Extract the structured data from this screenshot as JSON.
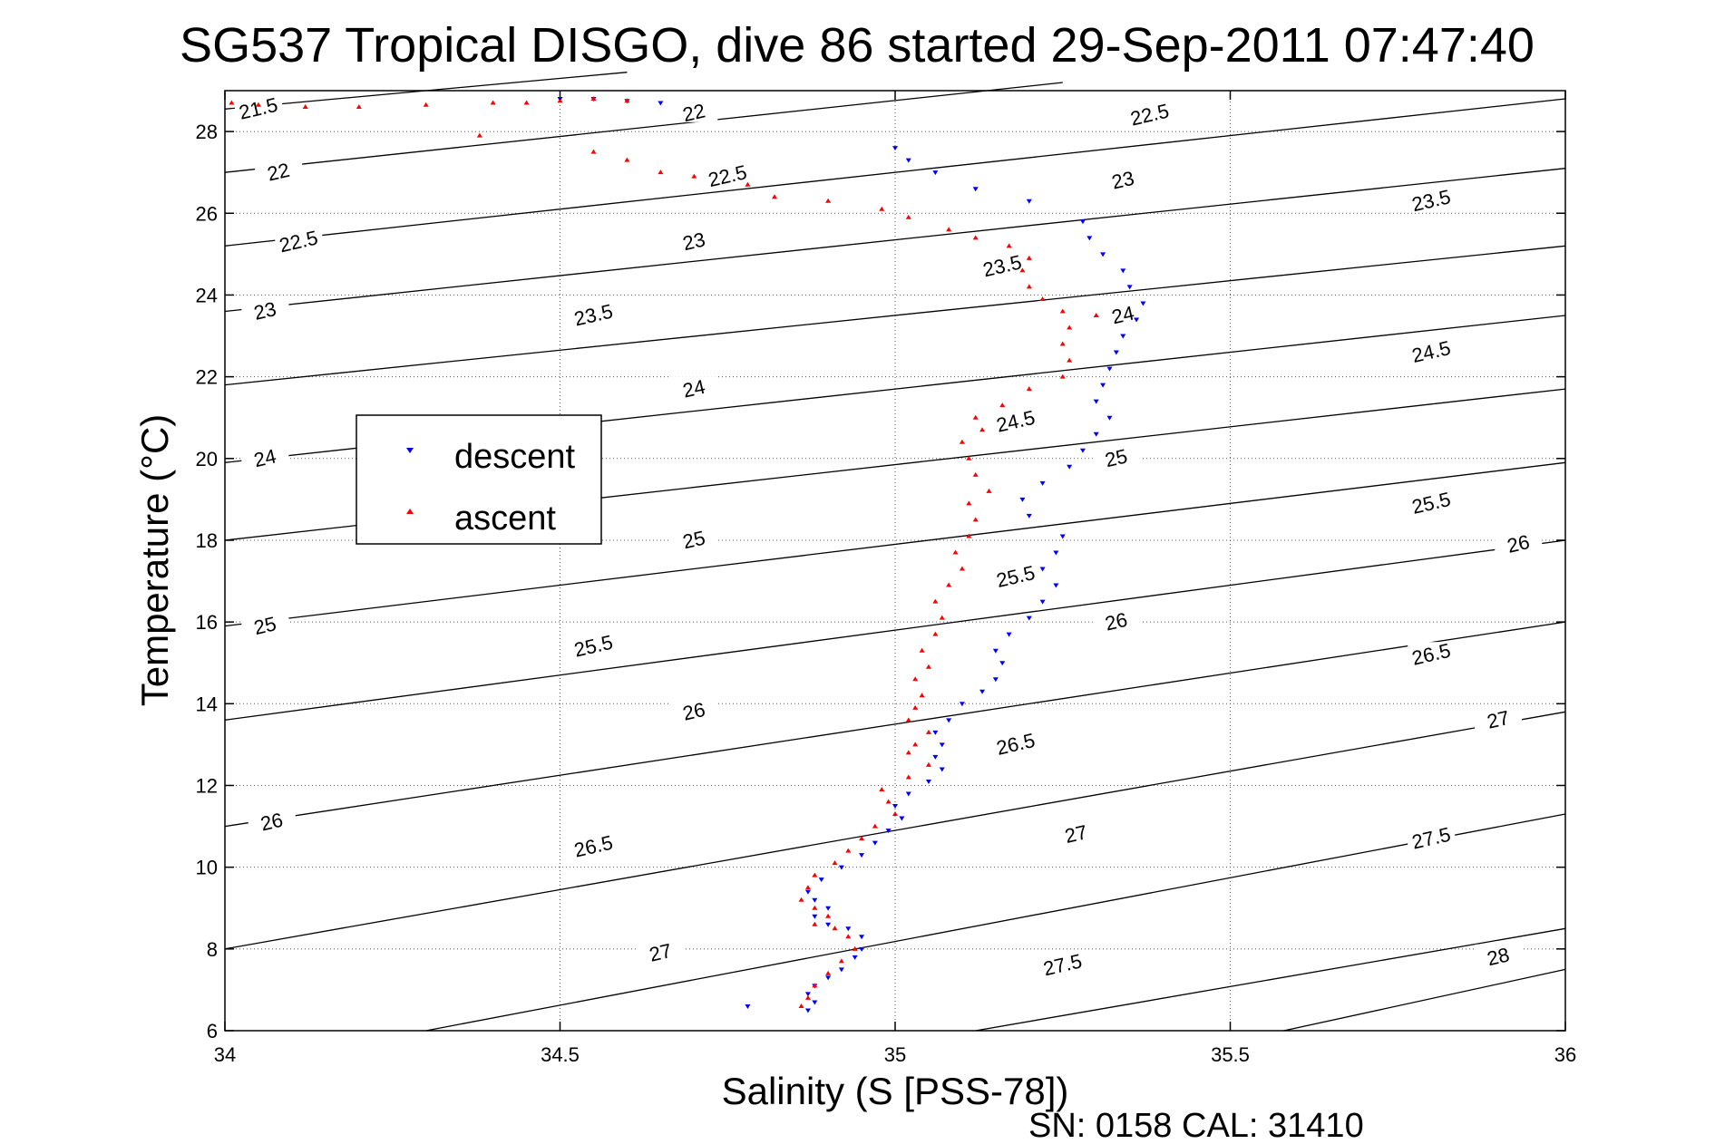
{
  "chart_data": {
    "type": "scatter",
    "title": "SG537 Tropical DISGO, dive 86 started 29-Sep-2011 07:47:40",
    "xlabel": "Salinity (S [PSS-78])",
    "ylabel": "Temperature (°C)",
    "xlim": [
      34,
      36
    ],
    "ylim": [
      6,
      29
    ],
    "xticks": [
      "34",
      "34.5",
      "35",
      "35.5",
      "36"
    ],
    "yticks": [
      "6",
      "8",
      "10",
      "12",
      "14",
      "16",
      "18",
      "20",
      "22",
      "24",
      "26",
      "28"
    ],
    "grid": "dotted",
    "legend": {
      "position": "middle-left",
      "entries": [
        "descent",
        "ascent"
      ]
    },
    "colors": {
      "descent": "#0000ff",
      "ascent": "#ff0000",
      "contour": "#000000"
    },
    "series": [
      {
        "name": "descent",
        "marker": "triangle-down",
        "points": [
          [
            34.5,
            28.8
          ],
          [
            34.55,
            28.8
          ],
          [
            34.6,
            28.75
          ],
          [
            34.65,
            28.7
          ],
          [
            34.78,
            6.6
          ],
          [
            34.87,
            6.5
          ],
          [
            34.88,
            6.7
          ],
          [
            34.87,
            6.9
          ],
          [
            34.88,
            7.1
          ],
          [
            34.9,
            7.3
          ],
          [
            34.92,
            7.5
          ],
          [
            34.94,
            7.8
          ],
          [
            34.95,
            8.0
          ],
          [
            34.95,
            8.3
          ],
          [
            34.93,
            8.5
          ],
          [
            34.9,
            8.6
          ],
          [
            34.88,
            8.8
          ],
          [
            34.9,
            9.0
          ],
          [
            34.88,
            9.2
          ],
          [
            34.87,
            9.4
          ],
          [
            34.89,
            9.7
          ],
          [
            34.92,
            10.0
          ],
          [
            34.95,
            10.3
          ],
          [
            34.97,
            10.6
          ],
          [
            34.99,
            10.9
          ],
          [
            35.01,
            11.2
          ],
          [
            35.0,
            11.5
          ],
          [
            35.02,
            11.8
          ],
          [
            35.05,
            12.1
          ],
          [
            35.07,
            12.4
          ],
          [
            35.06,
            12.7
          ],
          [
            35.07,
            13.0
          ],
          [
            35.06,
            13.3
          ],
          [
            35.08,
            13.6
          ],
          [
            35.1,
            14.0
          ],
          [
            35.13,
            14.3
          ],
          [
            35.15,
            14.6
          ],
          [
            35.16,
            15.0
          ],
          [
            35.15,
            15.3
          ],
          [
            35.17,
            15.7
          ],
          [
            35.2,
            16.1
          ],
          [
            35.22,
            16.5
          ],
          [
            35.24,
            16.9
          ],
          [
            35.22,
            17.3
          ],
          [
            35.24,
            17.7
          ],
          [
            35.25,
            18.1
          ],
          [
            35.2,
            18.6
          ],
          [
            35.19,
            19.0
          ],
          [
            35.22,
            19.4
          ],
          [
            35.26,
            19.8
          ],
          [
            35.28,
            20.2
          ],
          [
            35.3,
            20.6
          ],
          [
            35.32,
            21.0
          ],
          [
            35.3,
            21.4
          ],
          [
            35.31,
            21.8
          ],
          [
            35.32,
            22.2
          ],
          [
            35.33,
            22.6
          ],
          [
            35.34,
            23.0
          ],
          [
            35.36,
            23.4
          ],
          [
            35.37,
            23.8
          ],
          [
            35.35,
            24.2
          ],
          [
            35.34,
            24.6
          ],
          [
            35.31,
            25.0
          ],
          [
            35.29,
            25.4
          ],
          [
            35.28,
            25.8
          ],
          [
            35.2,
            26.3
          ],
          [
            35.12,
            26.6
          ],
          [
            35.06,
            27.0
          ],
          [
            35.02,
            27.3
          ],
          [
            35.0,
            27.6
          ]
        ]
      },
      {
        "name": "ascent",
        "marker": "triangle-up",
        "points": [
          [
            34.01,
            28.7
          ],
          [
            34.05,
            28.65
          ],
          [
            34.12,
            28.6
          ],
          [
            34.2,
            28.6
          ],
          [
            34.3,
            28.65
          ],
          [
            34.4,
            28.7
          ],
          [
            34.45,
            28.7
          ],
          [
            34.5,
            28.75
          ],
          [
            34.55,
            28.8
          ],
          [
            34.6,
            28.75
          ],
          [
            34.38,
            27.9
          ],
          [
            34.55,
            27.5
          ],
          [
            34.6,
            27.3
          ],
          [
            34.65,
            27.0
          ],
          [
            34.7,
            26.9
          ],
          [
            34.78,
            26.7
          ],
          [
            34.82,
            26.4
          ],
          [
            34.9,
            26.3
          ],
          [
            34.98,
            26.1
          ],
          [
            35.02,
            25.9
          ],
          [
            35.08,
            25.6
          ],
          [
            35.12,
            25.4
          ],
          [
            35.17,
            25.2
          ],
          [
            35.2,
            24.9
          ],
          [
            35.19,
            24.6
          ],
          [
            35.2,
            24.2
          ],
          [
            35.22,
            23.9
          ],
          [
            35.25,
            23.6
          ],
          [
            35.3,
            23.5
          ],
          [
            35.26,
            23.2
          ],
          [
            35.25,
            22.8
          ],
          [
            35.26,
            22.4
          ],
          [
            35.25,
            22.0
          ],
          [
            35.2,
            21.7
          ],
          [
            35.16,
            21.3
          ],
          [
            35.12,
            21.0
          ],
          [
            35.13,
            20.7
          ],
          [
            35.1,
            20.4
          ],
          [
            35.11,
            20.0
          ],
          [
            35.12,
            19.6
          ],
          [
            35.14,
            19.2
          ],
          [
            35.11,
            18.9
          ],
          [
            35.12,
            18.5
          ],
          [
            35.11,
            18.1
          ],
          [
            35.09,
            17.7
          ],
          [
            35.1,
            17.3
          ],
          [
            35.08,
            16.9
          ],
          [
            35.06,
            16.5
          ],
          [
            35.07,
            16.1
          ],
          [
            35.06,
            15.7
          ],
          [
            35.04,
            15.3
          ],
          [
            35.05,
            14.9
          ],
          [
            35.03,
            14.6
          ],
          [
            35.04,
            14.2
          ],
          [
            35.03,
            13.9
          ],
          [
            35.02,
            13.6
          ],
          [
            35.05,
            13.3
          ],
          [
            35.03,
            13.0
          ],
          [
            35.02,
            12.8
          ],
          [
            35.05,
            12.5
          ],
          [
            35.02,
            12.2
          ],
          [
            34.98,
            11.9
          ],
          [
            34.99,
            11.6
          ],
          [
            35.0,
            11.3
          ],
          [
            34.97,
            11.0
          ],
          [
            34.95,
            10.7
          ],
          [
            34.93,
            10.4
          ],
          [
            34.91,
            10.1
          ],
          [
            34.88,
            9.8
          ],
          [
            34.87,
            9.5
          ],
          [
            34.86,
            9.2
          ],
          [
            34.88,
            9.0
          ],
          [
            34.9,
            8.8
          ],
          [
            34.88,
            8.6
          ],
          [
            34.91,
            8.5
          ],
          [
            34.93,
            8.3
          ],
          [
            34.94,
            8.0
          ],
          [
            34.92,
            7.7
          ],
          [
            34.9,
            7.4
          ],
          [
            34.88,
            7.1
          ],
          [
            34.87,
            6.8
          ],
          [
            34.86,
            6.6
          ]
        ]
      }
    ],
    "density_contours": {
      "levels": [
        "21.5",
        "22",
        "22.5",
        "23",
        "23.5",
        "24",
        "24.5",
        "25",
        "25.5",
        "26",
        "26.5",
        "27",
        "27.5",
        "28"
      ],
      "lines": [
        {
          "label": "21.5",
          "points": [
            [
              34.0,
              28.55
            ],
            [
              34.6,
              29.45
            ]
          ]
        },
        {
          "label": "22",
          "points": [
            [
              34.0,
              27.0
            ],
            [
              35.25,
              29.2
            ]
          ]
        },
        {
          "label": "22.5",
          "points": [
            [
              34.0,
              25.2
            ],
            [
              36.0,
              28.8
            ]
          ]
        },
        {
          "label": "23",
          "points": [
            [
              34.0,
              23.6
            ],
            [
              36.0,
              27.1
            ]
          ]
        },
        {
          "label": "23.5",
          "points": [
            [
              34.0,
              21.8
            ],
            [
              36.0,
              25.2
            ]
          ]
        },
        {
          "label": "24",
          "points": [
            [
              34.0,
              19.9
            ],
            [
              36.0,
              23.5
            ]
          ]
        },
        {
          "label": "24.5",
          "points": [
            [
              34.0,
              18.0
            ],
            [
              36.0,
              21.7
            ]
          ]
        },
        {
          "label": "25",
          "points": [
            [
              34.0,
              15.9
            ],
            [
              36.0,
              19.9
            ]
          ]
        },
        {
          "label": "25.5",
          "points": [
            [
              34.0,
              13.6
            ],
            [
              36.0,
              18.0
            ]
          ]
        },
        {
          "label": "26",
          "points": [
            [
              34.0,
              11.0
            ],
            [
              36.0,
              16.0
            ]
          ]
        },
        {
          "label": "26.5",
          "points": [
            [
              34.0,
              8.0
            ],
            [
              36.0,
              13.8
            ]
          ]
        },
        {
          "label": "27",
          "points": [
            [
              34.3,
              6.0
            ],
            [
              36.0,
              11.3
            ]
          ]
        },
        {
          "label": "27.5",
          "points": [
            [
              35.12,
              6.0
            ],
            [
              36.0,
              8.5
            ]
          ]
        },
        {
          "label": "28",
          "points": [
            [
              35.58,
              6.0
            ],
            [
              36.0,
              7.5
            ]
          ]
        }
      ],
      "labels": [
        {
          "text": "21.5",
          "at": [
            34.05,
            28.55
          ]
        },
        {
          "text": "22",
          "at": [
            34.7,
            28.45
          ]
        },
        {
          "text": "22.5",
          "at": [
            35.38,
            28.4
          ]
        },
        {
          "text": "22",
          "at": [
            34.08,
            27.0
          ]
        },
        {
          "text": "22.5",
          "at": [
            34.75,
            26.9
          ]
        },
        {
          "text": "23",
          "at": [
            35.34,
            26.8
          ]
        },
        {
          "text": "22.5",
          "at": [
            34.11,
            25.3
          ]
        },
        {
          "text": "23",
          "at": [
            34.7,
            25.3
          ]
        },
        {
          "text": "23.5",
          "at": [
            35.8,
            26.3
          ]
        },
        {
          "text": "23",
          "at": [
            34.06,
            23.6
          ]
        },
        {
          "text": "23.5",
          "at": [
            34.55,
            23.5
          ]
        },
        {
          "text": "23.5",
          "at": [
            35.16,
            24.7
          ]
        },
        {
          "text": "24",
          "at": [
            35.34,
            23.5
          ]
        },
        {
          "text": "24",
          "at": [
            34.7,
            21.7
          ]
        },
        {
          "text": "24.5",
          "at": [
            35.8,
            22.6
          ]
        },
        {
          "text": "24",
          "at": [
            34.06,
            20.0
          ]
        },
        {
          "text": "24.5",
          "at": [
            35.18,
            20.9
          ]
        },
        {
          "text": "25",
          "at": [
            35.33,
            20.0
          ]
        },
        {
          "text": "25",
          "at": [
            34.7,
            18.0
          ]
        },
        {
          "text": "25.5",
          "at": [
            35.8,
            18.9
          ]
        },
        {
          "text": "25.5",
          "at": [
            35.18,
            17.1
          ]
        },
        {
          "text": "25",
          "at": [
            34.06,
            15.9
          ]
        },
        {
          "text": "26",
          "at": [
            35.33,
            16.0
          ]
        },
        {
          "text": "25.5",
          "at": [
            34.55,
            15.4
          ]
        },
        {
          "text": "26",
          "at": [
            35.93,
            17.9
          ]
        },
        {
          "text": "26.5",
          "at": [
            35.8,
            15.2
          ]
        },
        {
          "text": "26",
          "at": [
            34.7,
            13.8
          ]
        },
        {
          "text": "26.5",
          "at": [
            35.18,
            13.0
          ]
        },
        {
          "text": "27",
          "at": [
            35.9,
            13.6
          ]
        },
        {
          "text": "26",
          "at": [
            34.07,
            11.1
          ]
        },
        {
          "text": "27",
          "at": [
            35.27,
            10.8
          ]
        },
        {
          "text": "27.5",
          "at": [
            35.8,
            10.7
          ]
        },
        {
          "text": "26.5",
          "at": [
            34.55,
            10.5
          ]
        },
        {
          "text": "27",
          "at": [
            34.65,
            7.9
          ]
        },
        {
          "text": "27.5",
          "at": [
            35.25,
            7.6
          ]
        },
        {
          "text": "28",
          "at": [
            35.9,
            7.8
          ]
        }
      ]
    }
  },
  "footer": {
    "text": "SN: 0158  CAL: 31410"
  }
}
